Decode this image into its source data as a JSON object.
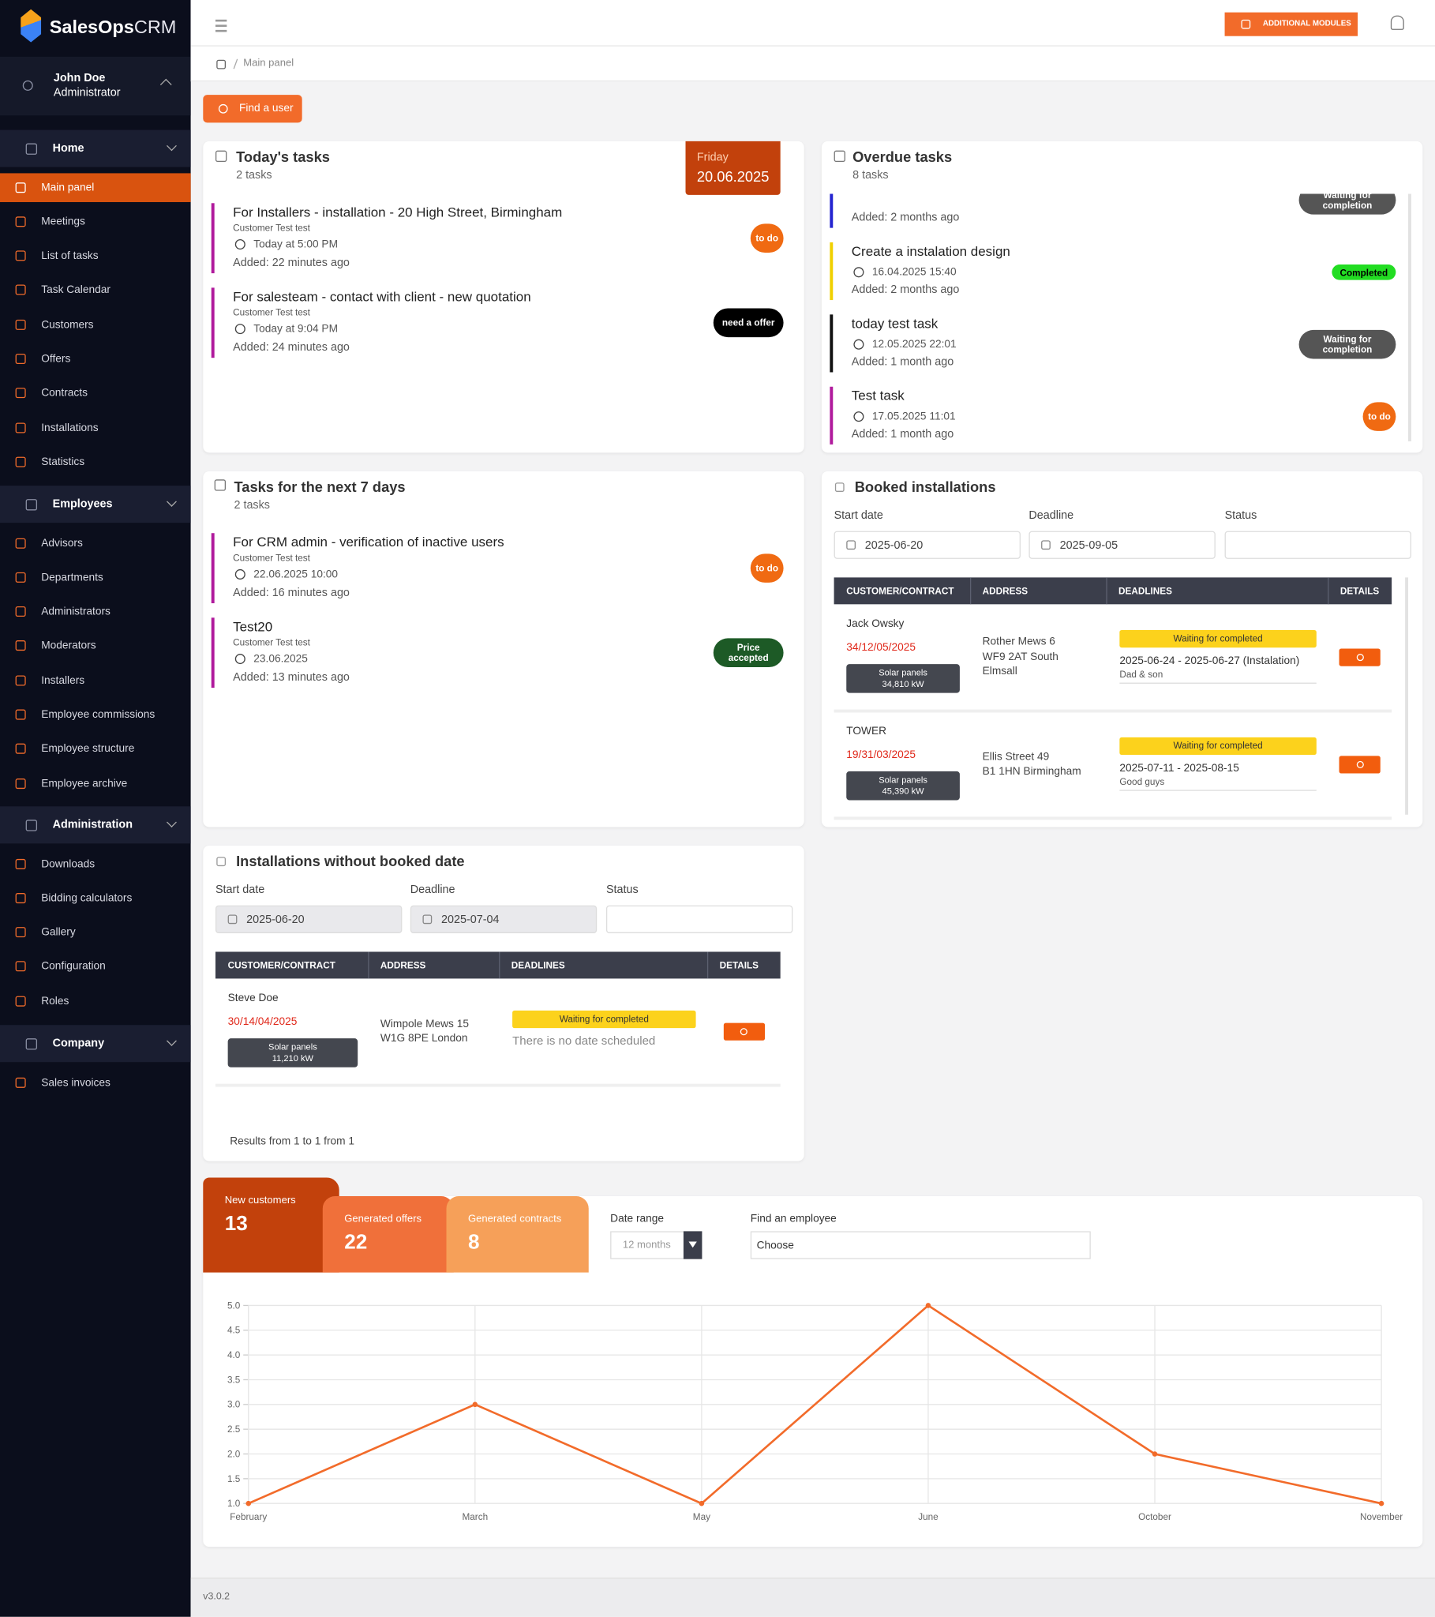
{
  "brand": {
    "strong": "SalesOps",
    "light": "CRM"
  },
  "user": {
    "name": "John Doe",
    "role": "Administrator"
  },
  "nav": [
    {
      "group": "Home",
      "items": [
        "Main panel",
        "Meetings",
        "List of tasks",
        "Task Calendar",
        "Customers",
        "Offers",
        "Contracts",
        "Installations",
        "Statistics"
      ]
    },
    {
      "group": "Employees",
      "items": [
        "Advisors",
        "Departments",
        "Administrators",
        "Moderators",
        "Installers",
        "Employee commissions",
        "Employee structure",
        "Employee archive"
      ]
    },
    {
      "group": "Administration",
      "items": [
        "Downloads",
        "Bidding calculators",
        "Gallery",
        "Configuration",
        "Roles"
      ]
    },
    {
      "group": "Company",
      "items": [
        "Sales invoices"
      ]
    }
  ],
  "header": {
    "modules_button": "ADDITIONAL MODULES"
  },
  "breadcrumb": "Main panel",
  "find_user_button": "Find a user",
  "todays_tasks": {
    "title": "Today's tasks",
    "subtitle": "2 tasks",
    "day": "Friday",
    "date": "20.06.2025",
    "tasks": [
      {
        "title": "For Installers - installation - 20 High Street, Birmingham",
        "customer": "Customer Test test",
        "time": "Today at 5:00 PM",
        "added": "Added: 22 minutes ago",
        "status": "to do",
        "color": "#b01a9c",
        "badge_color": "#f06a12"
      },
      {
        "title": "For salesteam - contact with client - new quotation",
        "customer": "Customer Test test",
        "time": "Today at 9:04 PM",
        "added": "Added: 24 minutes ago",
        "status": "need a offer",
        "color": "#b01a9c",
        "badge_color": "#000000"
      }
    ]
  },
  "overdue_tasks": {
    "title": "Overdue tasks",
    "subtitle": "8 tasks",
    "tasks": [
      {
        "added": "Added: 2 months ago",
        "status": "Waiting for completion",
        "color": "#2424d0",
        "badge_color": "#555555"
      },
      {
        "title": "Create a instalation design",
        "time": "16.04.2025 15:40",
        "added": "Added: 2 months ago",
        "status": "Completed",
        "color": "#f0d000",
        "badge_color": "#22dd22"
      },
      {
        "title": "today test task",
        "time": "12.05.2025 22:01",
        "added": "Added: 1 month ago",
        "status": "Waiting for completion",
        "color": "#111111",
        "badge_color": "#555555"
      },
      {
        "title": "Test task",
        "time": "17.05.2025 11:01",
        "added": "Added: 1 month ago",
        "status": "to do",
        "color": "#b01a9c",
        "badge_color": "#f06a12"
      }
    ]
  },
  "next_7_days": {
    "title": "Tasks for the next 7 days",
    "subtitle": "2 tasks",
    "tasks": [
      {
        "title": "For CRM admin - verification of inactive users",
        "customer": "Customer Test test",
        "time": "22.06.2025 10:00",
        "added": "Added: 16 minutes ago",
        "status": "to do",
        "color": "#b01a9c",
        "badge_color": "#f06a12"
      },
      {
        "title": "Test20",
        "customer": "Customer Test test",
        "time": "23.06.2025",
        "added": "Added: 13 minutes ago",
        "status": "Price accepted",
        "color": "#b01a9c",
        "badge_color": "#1d5a26"
      }
    ]
  },
  "booked_installations": {
    "title": "Booked installations",
    "filter_labels": [
      "Start date",
      "Deadline",
      "Status"
    ],
    "start_date": "2025-06-20",
    "deadline": "2025-09-05",
    "columns": [
      "CUSTOMER/CONTRACT",
      "ADDRESS",
      "DEADLINES",
      "DETAILS"
    ],
    "rows": [
      {
        "customer": "Jack Owsky",
        "contract": "34/12/05/2025",
        "product": "Solar panels",
        "power": "34,810 kW",
        "address": [
          "Rother Mews 6",
          "WF9 2AT South",
          "Elmsall"
        ],
        "status": "Waiting for completed",
        "deadline": "2025-06-24 - 2025-06-27 (Instalation)",
        "note": "Dad & son"
      },
      {
        "customer": "TOWER",
        "contract": "19/31/03/2025",
        "product": "Solar panels",
        "power": "45,390 kW",
        "address": [
          "Ellis Street 49",
          "B1 1HN Birmingham"
        ],
        "status": "Waiting for completed",
        "deadline": "2025-07-11 - 2025-08-15",
        "note": "Good guys"
      }
    ]
  },
  "unbooked_installations": {
    "title": "Installations without booked date",
    "filter_labels": [
      "Start date",
      "Deadline",
      "Status"
    ],
    "start_date": "2025-06-20",
    "deadline": "2025-07-04",
    "columns": [
      "CUSTOMER/CONTRACT",
      "ADDRESS",
      "DEADLINES",
      "DETAILS"
    ],
    "rows": [
      {
        "customer": "Steve Doe",
        "contract": "30/14/04/2025",
        "product": "Solar panels",
        "power": "11,210 kW",
        "address": [
          "Wimpole Mews 15",
          "W1G 8PE London"
        ],
        "status": "Waiting for completed",
        "deadline": "There is no date scheduled"
      }
    ],
    "results": "Results from 1 to 1 from 1"
  },
  "stats": {
    "tabs": [
      {
        "label": "New customers",
        "value": 13,
        "color": "#c2410c"
      },
      {
        "label": "Generated offers",
        "value": 22,
        "color": "#f0703a"
      },
      {
        "label": "Generated contracts",
        "value": 8,
        "color": "#f6a059"
      }
    ],
    "date_range_label": "Date range",
    "date_range": "12 months",
    "employee_label": "Find an employee",
    "employee_placeholder": "Choose"
  },
  "chart_data": {
    "type": "line",
    "categories": [
      "February",
      "March",
      "May",
      "June",
      "October",
      "November"
    ],
    "values": [
      1,
      3,
      1,
      5,
      2,
      1
    ],
    "color": "#f26b2a",
    "ylim": [
      1,
      5
    ],
    "yticks": [
      {
        "value": 1,
        "label": "1.0"
      },
      {
        "value": 1.5,
        "label": "1.5"
      },
      {
        "value": 2,
        "label": "2.0"
      },
      {
        "value": 2.5,
        "label": "2.5"
      },
      {
        "value": 3,
        "label": "3.0"
      },
      {
        "value": 3.5,
        "label": "3.5"
      },
      {
        "value": 4,
        "label": "4.0"
      },
      {
        "value": 4.5,
        "label": "4.5"
      },
      {
        "value": 5,
        "label": "5.0"
      }
    ],
    "grid": true
  },
  "version": "v3.0.2"
}
